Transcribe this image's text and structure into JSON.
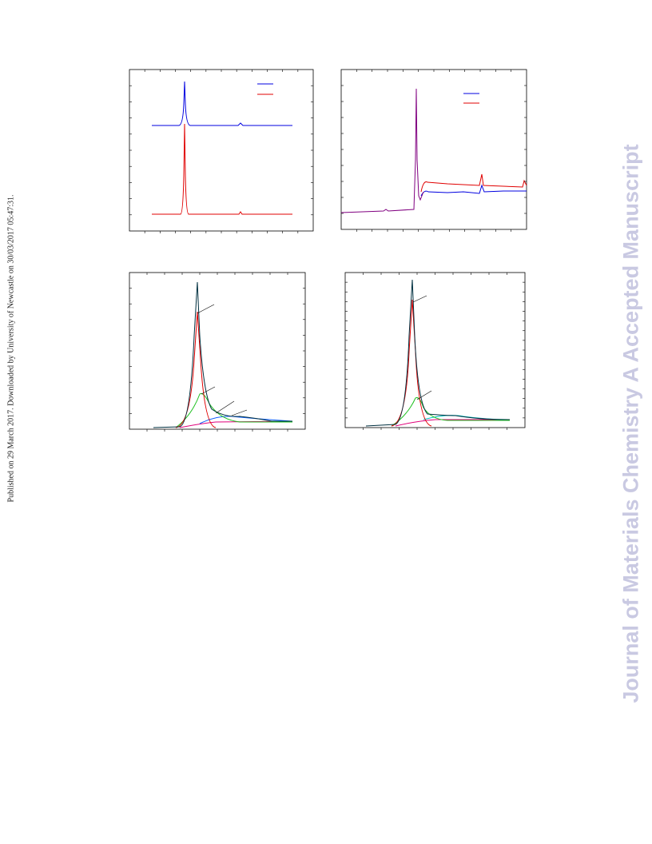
{
  "side_note": "Published on 29 March 2017. Downloaded by University of Newcastle on 30/03/2017 05:47:31.",
  "watermark": "Journal of Materials Chemistry A Accepted Manuscript"
}
